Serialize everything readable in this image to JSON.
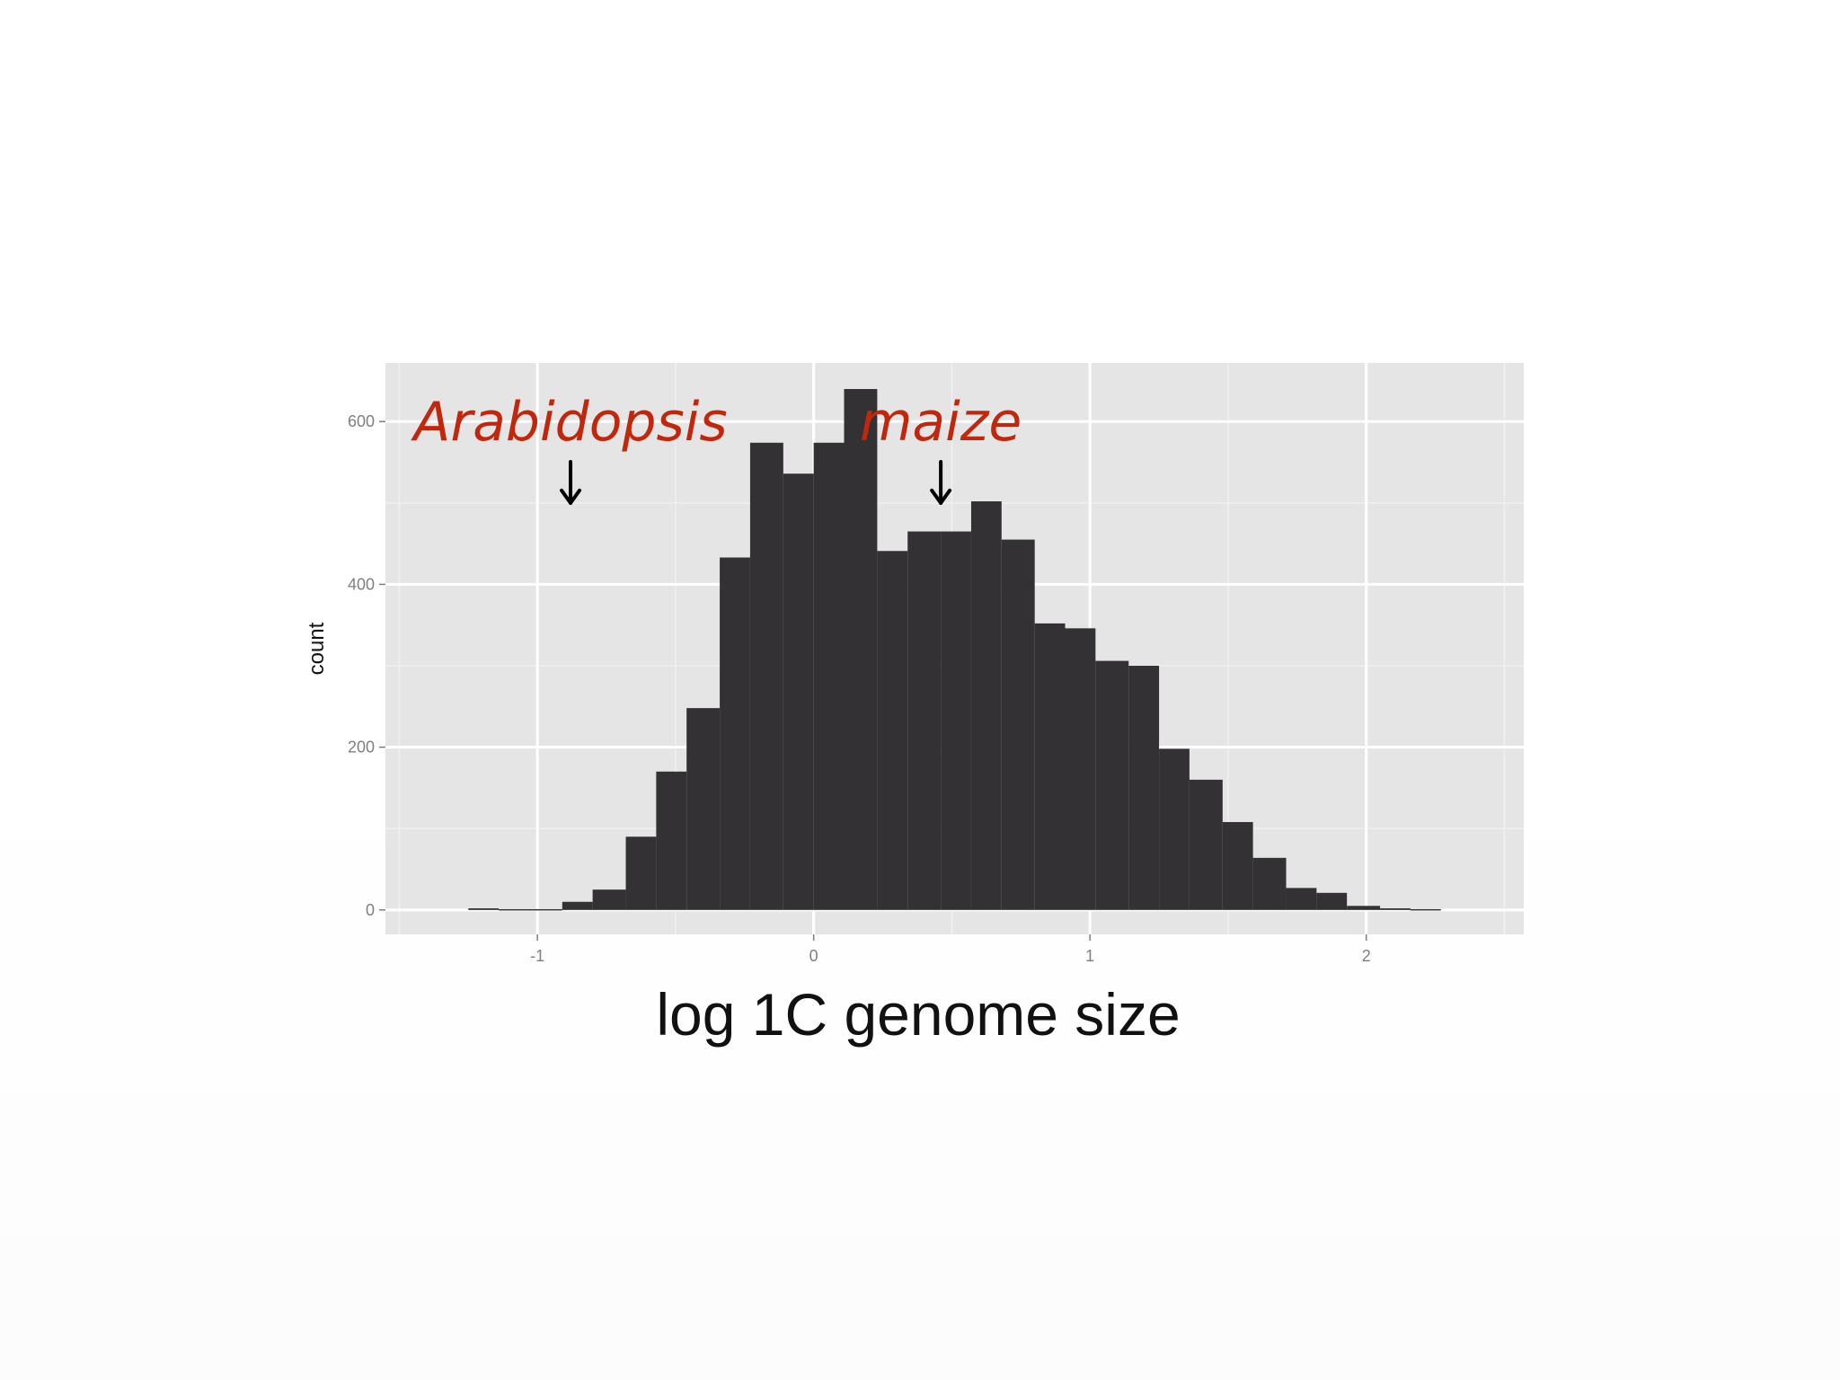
{
  "colors": {
    "panel": "#e5e5e5",
    "grid_major": "#ffffff",
    "grid_minor": "#f0f0f0",
    "bar": "#333133",
    "annotation": "#c1270c",
    "arrow": "#000000"
  },
  "chart_data": {
    "type": "bar",
    "subtype": "histogram",
    "title": "",
    "xlabel": "log 1C genome size",
    "ylabel": "count",
    "xlim": [
      -1.55,
      2.57
    ],
    "ylim": [
      -30,
      672
    ],
    "xticks": [
      -1,
      0,
      1,
      2
    ],
    "xtick_labels": [
      "-1",
      "0",
      "1",
      "2"
    ],
    "yticks": [
      0,
      200,
      400,
      600
    ],
    "ytick_labels": [
      "0",
      "200",
      "400",
      "600"
    ],
    "grid": true,
    "legend": "none",
    "bins": [
      {
        "x0": -1.25,
        "x1": -1.14,
        "count": 2
      },
      {
        "x0": -1.14,
        "x1": -1.02,
        "count": 1
      },
      {
        "x0": -1.02,
        "x1": -0.91,
        "count": 1
      },
      {
        "x0": -0.91,
        "x1": -0.8,
        "count": 10
      },
      {
        "x0": -0.8,
        "x1": -0.68,
        "count": 25
      },
      {
        "x0": -0.68,
        "x1": -0.57,
        "count": 90
      },
      {
        "x0": -0.57,
        "x1": -0.46,
        "count": 170
      },
      {
        "x0": -0.46,
        "x1": -0.34,
        "count": 248
      },
      {
        "x0": -0.34,
        "x1": -0.23,
        "count": 433
      },
      {
        "x0": -0.23,
        "x1": -0.11,
        "count": 574
      },
      {
        "x0": -0.11,
        "x1": 0.0,
        "count": 536
      },
      {
        "x0": 0.0,
        "x1": 0.11,
        "count": 574
      },
      {
        "x0": 0.11,
        "x1": 0.23,
        "count": 640
      },
      {
        "x0": 0.23,
        "x1": 0.34,
        "count": 441
      },
      {
        "x0": 0.34,
        "x1": 0.46,
        "count": 465
      },
      {
        "x0": 0.46,
        "x1": 0.57,
        "count": 465
      },
      {
        "x0": 0.57,
        "x1": 0.68,
        "count": 502
      },
      {
        "x0": 0.68,
        "x1": 0.8,
        "count": 455
      },
      {
        "x0": 0.8,
        "x1": 0.91,
        "count": 352
      },
      {
        "x0": 0.91,
        "x1": 1.02,
        "count": 346
      },
      {
        "x0": 1.02,
        "x1": 1.14,
        "count": 306
      },
      {
        "x0": 1.14,
        "x1": 1.25,
        "count": 300
      },
      {
        "x0": 1.25,
        "x1": 1.36,
        "count": 198
      },
      {
        "x0": 1.36,
        "x1": 1.48,
        "count": 160
      },
      {
        "x0": 1.48,
        "x1": 1.59,
        "count": 108
      },
      {
        "x0": 1.59,
        "x1": 1.71,
        "count": 64
      },
      {
        "x0": 1.71,
        "x1": 1.82,
        "count": 27
      },
      {
        "x0": 1.82,
        "x1": 1.93,
        "count": 21
      },
      {
        "x0": 1.93,
        "x1": 2.05,
        "count": 5
      },
      {
        "x0": 2.05,
        "x1": 2.16,
        "count": 2
      },
      {
        "x0": 2.16,
        "x1": 2.27,
        "count": 1
      }
    ],
    "annotations": [
      {
        "text": "Arabidopsis",
        "arrow_x": -0.88,
        "arrow_y": 500
      },
      {
        "text": "maize",
        "arrow_x": 0.46,
        "arrow_y": 500
      }
    ]
  }
}
